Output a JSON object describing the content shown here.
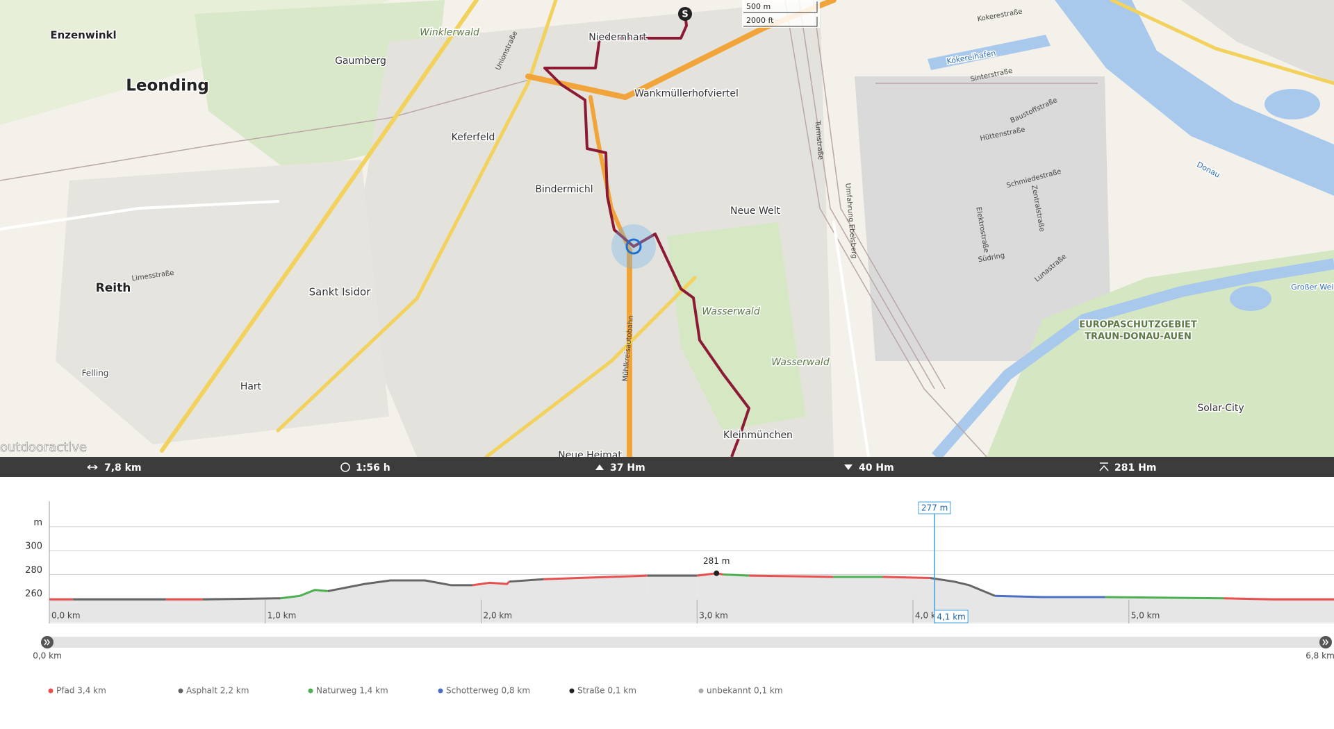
{
  "map": {
    "places": [
      "Enzenwinkl",
      "Leonding",
      "Gaumberg",
      "Winklerwald",
      "Niedernhart",
      "Wankmüllerhofviertel",
      "Keferfeld",
      "Bindermichl",
      "Neue Welt",
      "Reith",
      "Sankt Isidor",
      "Hart",
      "Felling",
      "Wasserwald",
      "Wasserwald",
      "Kleinmünchen",
      "Neue Heimat",
      "EUROPASCHUTZGEBIET",
      "TRAUN-DONAU-AUEN",
      "Solar-City",
      "Kokereihafen",
      "Donau",
      "Großer Weik"
    ],
    "streets": [
      "Kokerestraße",
      "Sinterstraße",
      "Hüttenstraße",
      "Baustoffstraße",
      "Schmiedestraße",
      "Südring",
      "Lunastraße",
      "Zentralstraße",
      "Elektrostraße",
      "Limesstraße",
      "Umfahrung Ebelsberg",
      "Mühlkreisautobahn",
      "Unionstraße",
      "Turmstraße"
    ],
    "scale": [
      "500 m",
      "2000 ft"
    ],
    "brand": "outdooractive",
    "start": "S"
  },
  "stats": [
    "7,8 km",
    "1:56 h",
    "37 Hm",
    "40 Hm",
    "281 Hm"
  ],
  "chart_data": {
    "type": "line",
    "ylim": [
      240,
      340
    ],
    "yticks": [
      260,
      280,
      300,
      {
        "value": 320,
        "label": "m"
      }
    ],
    "xlim": [
      0,
      5.95
    ],
    "xticks": [
      {
        "value": 0,
        "label": "0,0 km"
      },
      {
        "value": 1,
        "label": "1,0 km"
      },
      {
        "value": 2,
        "label": "2,0 km"
      },
      {
        "value": 3,
        "label": "3,0 km"
      },
      {
        "value": 4,
        "label": "4,0 km"
      },
      {
        "value": 5,
        "label": "5,0 km"
      }
    ],
    "grid": true,
    "fill": "#e6e6e6",
    "series": [
      {
        "name": "Pfad 3,4 km",
        "color": "#e8504f",
        "x": [
          0,
          0.11,
          0.3,
          0.54,
          0.71,
          1.5,
          1.96,
          2.04,
          2.12,
          2.13,
          2.2,
          2.29,
          2.45,
          2.77,
          2.9,
          3.0,
          3.09,
          3.12,
          3.2,
          3.24,
          3.63,
          3.75,
          3.86,
          4.08,
          5.0,
          5.44,
          5.67,
          5.95
        ],
        "values": [
          259,
          259,
          null,
          259,
          259,
          null,
          271,
          273,
          272,
          274,
          null,
          276,
          277,
          279,
          null,
          279,
          281,
          280,
          null,
          279,
          278,
          null,
          278,
          277,
          null,
          260,
          259,
          259
        ]
      },
      {
        "name": "Asphalt 2,2 km",
        "color": "#666666",
        "x": [
          0.11,
          0.54,
          0.6,
          0.71,
          1.07,
          1.2,
          1.29,
          1.46,
          1.58,
          1.74,
          1.86,
          1.96,
          2.05,
          2.13,
          2.29,
          2.5,
          2.77,
          3.0,
          3.5,
          4.08,
          4.19,
          4.26,
          4.38
        ],
        "values": [
          259,
          259,
          null,
          259,
          260,
          null,
          266,
          272,
          275,
          275,
          271,
          271,
          null,
          274,
          276,
          null,
          279,
          279,
          null,
          277,
          274,
          271,
          262
        ]
      },
      {
        "name": "Naturweg 1,4 km",
        "color": "#4caf50",
        "x": [
          1.07,
          1.16,
          1.23,
          1.29,
          2,
          3.12,
          3.24,
          3.4,
          3.63,
          3.86,
          4.5,
          4.89,
          5.44
        ],
        "values": [
          260,
          262,
          267,
          266,
          null,
          280,
          279,
          null,
          278,
          278,
          null,
          261,
          260
        ]
      },
      {
        "name": "Schotterweg 0,8 km",
        "color": "#4a6fc4",
        "x": [
          4.38,
          4.6,
          4.89
        ],
        "values": [
          262,
          261,
          261
        ]
      },
      {
        "name": "Straße 0,1 km",
        "color": "#222222",
        "x": [],
        "values": []
      },
      {
        "name": "unbekannt 0,1 km",
        "color": "#aaaaaa",
        "x": [],
        "values": []
      }
    ],
    "peak": {
      "x": 3.09,
      "value": 281,
      "label": "281 m"
    },
    "cursor": {
      "x": 4.1,
      "value": 277,
      "label": "277 m",
      "x_label": "4,1 km"
    }
  },
  "slider": {
    "start": 0,
    "end": 6.8,
    "start_label": "0,0 km",
    "end_label": "6,8 km"
  }
}
